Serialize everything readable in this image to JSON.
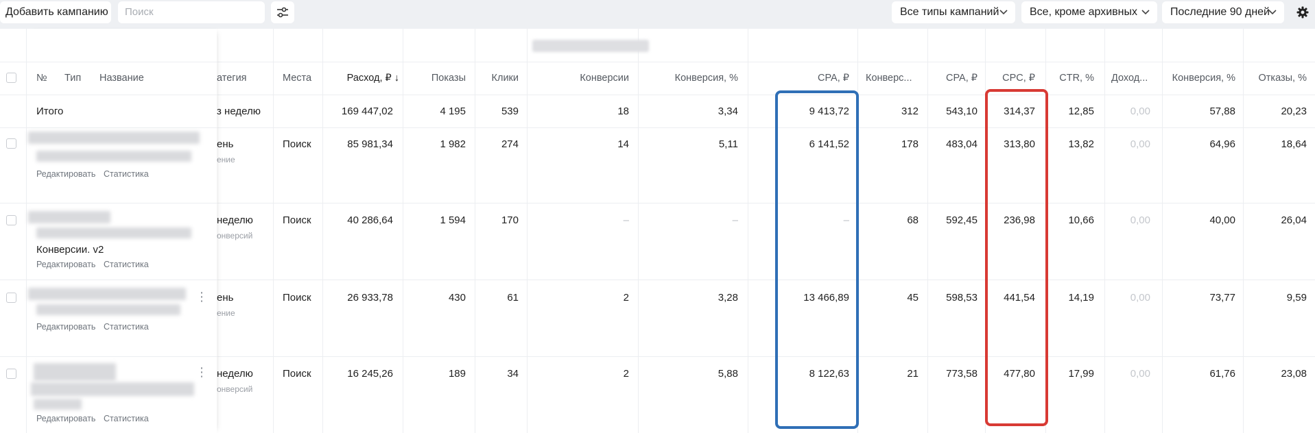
{
  "toolbar": {
    "add_campaign_label": "Добавить кампанию",
    "search_placeholder": "Поиск",
    "campaign_types": "Все типы кампаний",
    "status_filter": "Все, кроме архивных",
    "period": "Последние 90 дней"
  },
  "columns": {
    "num": "№",
    "type": "Тип",
    "name": "Название",
    "strategy": "атегия",
    "places": "Места",
    "spend": "Расход, ₽ ↓",
    "impressions": "Показы",
    "clicks": "Клики",
    "conversions": "Конверсии",
    "conversion_pct": "Конверсия, %",
    "cpa1": "CPA, ₽",
    "conv2": "Конверс...",
    "cpa2": "CPA, ₽",
    "cpc": "CPC, ₽",
    "ctr": "CTR, %",
    "income": "Доход...",
    "conversion_pct2": "Конверсия, %",
    "bounces": "Отказы, %"
  },
  "total": {
    "label": "Итого",
    "strategy": "з неделю",
    "spend": "169 447,02",
    "impressions": "4 195",
    "clicks": "539",
    "conversions": "18",
    "conversion_pct": "3,34",
    "cpa1": "9 413,72",
    "conv2": "312",
    "cpa2": "543,10",
    "cpc": "314,37",
    "ctr": "12,85",
    "income": "0,00",
    "conversion_pct2": "57,88",
    "bounces": "20,23"
  },
  "rows": [
    {
      "name_extra": "",
      "strategy": "ень",
      "strategy_sub": "ение",
      "places": "Поиск",
      "spend": "85 981,34",
      "impressions": "1 982",
      "clicks": "274",
      "conversions": "14",
      "conversion_pct": "5,11",
      "cpa1": "6 141,52",
      "conv2": "178",
      "cpa2": "483,04",
      "cpc": "313,80",
      "ctr": "13,82",
      "income": "0,00",
      "conversion_pct2": "64,96",
      "bounces": "18,64",
      "edit_link": "Редактировать",
      "stats_link": "Статистика"
    },
    {
      "name_extra": "Конверсии. v2",
      "strategy": "неделю",
      "strategy_sub": "онверсий",
      "places": "Поиск",
      "spend": "40 286,64",
      "impressions": "1 594",
      "clicks": "170",
      "conversions": "–",
      "conversion_pct": "–",
      "cpa1": "–",
      "conv2": "68",
      "cpa2": "592,45",
      "cpc": "236,98",
      "ctr": "10,66",
      "income": "0,00",
      "conversion_pct2": "40,00",
      "bounces": "26,04",
      "edit_link": "Редактировать",
      "stats_link": "Статистика"
    },
    {
      "name_extra": "",
      "strategy": "ень",
      "strategy_sub": "ение",
      "places": "Поиск",
      "spend": "26 933,78",
      "impressions": "430",
      "clicks": "61",
      "conversions": "2",
      "conversion_pct": "3,28",
      "cpa1": "13 466,89",
      "conv2": "45",
      "cpa2": "598,53",
      "cpc": "441,54",
      "ctr": "14,19",
      "income": "0,00",
      "conversion_pct2": "73,77",
      "bounces": "9,59",
      "edit_link": "Редактировать",
      "stats_link": "Статистика"
    },
    {
      "name_extra": "",
      "strategy": "неделю",
      "strategy_sub": "онверсий",
      "places": "Поиск",
      "spend": "16 245,26",
      "impressions": "189",
      "clicks": "34",
      "conversions": "2",
      "conversion_pct": "5,88",
      "cpa1": "8 122,63",
      "conv2": "21",
      "cpa2": "773,58",
      "cpc": "477,80",
      "ctr": "17,99",
      "income": "0,00",
      "conversion_pct2": "61,76",
      "bounces": "23,08",
      "edit_link": "Редактировать",
      "stats_link": "Статистика"
    }
  ],
  "highlights": {
    "cpa_box_color": "#2f6fb6",
    "cpc_box_color": "#d83a34"
  },
  "icons": {
    "filter": "sliders-icon",
    "chevron": "chevron-down-icon",
    "settings": "gear-icon",
    "row_menu": "kebab-icon"
  }
}
